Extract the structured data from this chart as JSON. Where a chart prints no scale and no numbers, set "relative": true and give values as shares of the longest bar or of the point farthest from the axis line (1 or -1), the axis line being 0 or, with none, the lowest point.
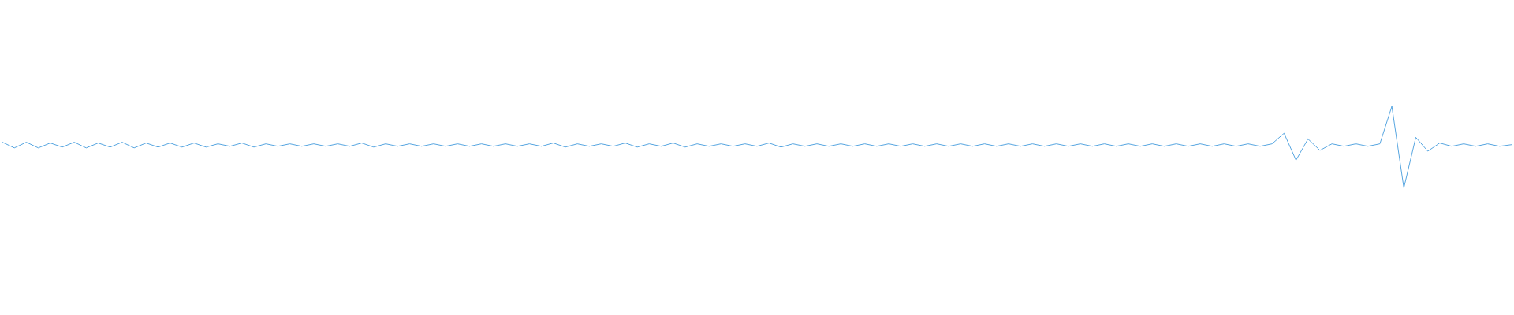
{
  "chart_data": {
    "type": "line",
    "relative": true,
    "grid": false,
    "legend": false,
    "marker": "none",
    "line_style": "solid",
    "categories": [
      null,
      null,
      null,
      null,
      null,
      null,
      null,
      null,
      null,
      null,
      null,
      null,
      null,
      null,
      null,
      null,
      null,
      null,
      null,
      null,
      null,
      null,
      null,
      null,
      null,
      null,
      null,
      null,
      null,
      null,
      null,
      null,
      null,
      null,
      null,
      null,
      null,
      null,
      null,
      null,
      null,
      null,
      null,
      null,
      null,
      null,
      null,
      null,
      null,
      null,
      null,
      null,
      null,
      null,
      null,
      null,
      null,
      null,
      null,
      null,
      null,
      null,
      null,
      null,
      null,
      null,
      null,
      null,
      null,
      null,
      null,
      null,
      null,
      null,
      null,
      null,
      null,
      null,
      null,
      null,
      null,
      null,
      null,
      null,
      null,
      null,
      null,
      null,
      null,
      null,
      null,
      null,
      null,
      null,
      null,
      null,
      null,
      null,
      null,
      null,
      null,
      null,
      null,
      null,
      null,
      null,
      null,
      null,
      null,
      null,
      null,
      null,
      null,
      null,
      null,
      null,
      null,
      null,
      null,
      null,
      null,
      null,
      null,
      null,
      null,
      null,
      null
    ],
    "series": [
      {
        "color": "#56a5e0",
        "values": [
          0.56,
          0.49,
          0.56,
          0.49,
          0.55,
          0.5,
          0.56,
          0.49,
          0.55,
          0.5,
          0.56,
          0.49,
          0.55,
          0.5,
          0.55,
          0.5,
          0.55,
          0.5,
          0.54,
          0.51,
          0.55,
          0.5,
          0.54,
          0.51,
          0.54,
          0.51,
          0.54,
          0.51,
          0.54,
          0.51,
          0.55,
          0.5,
          0.54,
          0.51,
          0.54,
          0.51,
          0.54,
          0.51,
          0.54,
          0.51,
          0.54,
          0.51,
          0.54,
          0.51,
          0.54,
          0.51,
          0.55,
          0.5,
          0.54,
          0.51,
          0.54,
          0.51,
          0.55,
          0.5,
          0.54,
          0.51,
          0.55,
          0.5,
          0.54,
          0.51,
          0.54,
          0.51,
          0.54,
          0.51,
          0.55,
          0.5,
          0.54,
          0.51,
          0.54,
          0.51,
          0.54,
          0.51,
          0.54,
          0.51,
          0.54,
          0.51,
          0.54,
          0.51,
          0.54,
          0.51,
          0.54,
          0.51,
          0.54,
          0.51,
          0.54,
          0.51,
          0.54,
          0.51,
          0.54,
          0.51,
          0.54,
          0.51,
          0.54,
          0.51,
          0.54,
          0.51,
          0.54,
          0.51,
          0.54,
          0.51,
          0.54,
          0.51,
          0.54,
          0.51,
          0.54,
          0.51,
          0.54,
          0.67,
          0.34,
          0.6,
          0.46,
          0.54,
          0.51,
          0.54,
          0.51,
          0.54,
          1.0,
          0.0,
          0.62,
          0.45,
          0.55,
          0.51,
          0.54,
          0.51,
          0.54,
          0.51,
          0.53
        ]
      }
    ]
  }
}
